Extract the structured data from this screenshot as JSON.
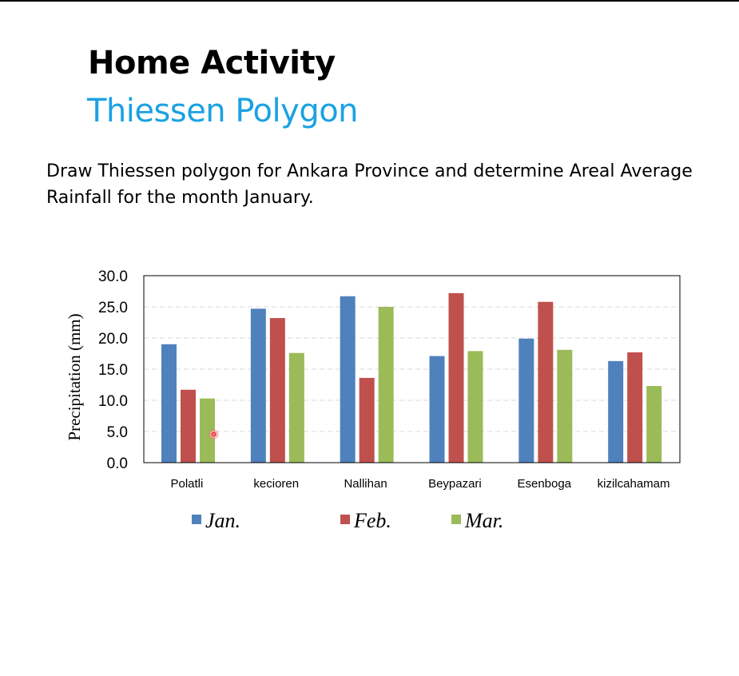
{
  "slide": {
    "title": "Home Activity",
    "subtitle": "Thiessen Polygon",
    "instruction": "Draw Thiessen polygon for Ankara Province and determine Areal Average Rainfall for the month January."
  },
  "chart_data": {
    "type": "bar",
    "categories": [
      "Polatli",
      "kecioren",
      "Nallihan",
      "Beypazari",
      "Esenboga",
      "kizilcahamam"
    ],
    "series": [
      {
        "name": "Jan.",
        "color": "#4f81bd",
        "values": [
          19.0,
          24.7,
          26.7,
          17.1,
          19.9,
          16.3
        ]
      },
      {
        "name": "Feb.",
        "color": "#c0504d",
        "values": [
          11.7,
          23.2,
          13.6,
          27.2,
          25.8,
          17.7
        ]
      },
      {
        "name": "Mar.",
        "color": "#9bbb59",
        "values": [
          10.3,
          17.6,
          25.0,
          17.9,
          18.1,
          12.3
        ]
      }
    ],
    "ylabel": "Precipitation (mm)",
    "xlabel": "",
    "ylim": [
      0,
      30
    ],
    "yticks": [
      "0.0",
      "5.0",
      "10.0",
      "15.0",
      "20.0",
      "25.0",
      "30.0"
    ],
    "grid": true,
    "legend": "bottom"
  }
}
